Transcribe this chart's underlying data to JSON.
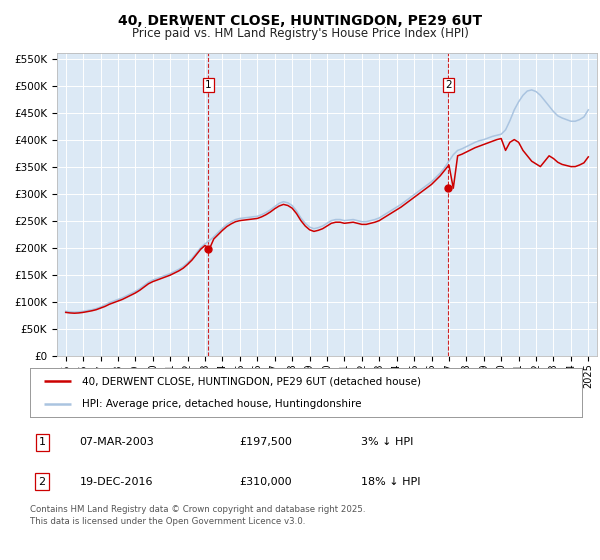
{
  "title": "40, DERWENT CLOSE, HUNTINGDON, PE29 6UT",
  "subtitle": "Price paid vs. HM Land Registry's House Price Index (HPI)",
  "title_fontsize": 10,
  "subtitle_fontsize": 8.5,
  "background_color": "#ffffff",
  "plot_bg_color": "#dce9f5",
  "grid_color": "#ffffff",
  "hpi_color": "#aac4e0",
  "price_color": "#cc0000",
  "marker_color": "#cc0000",
  "vline_color": "#cc0000",
  "ylim": [
    0,
    560000
  ],
  "yticks": [
    0,
    50000,
    100000,
    150000,
    200000,
    250000,
    300000,
    350000,
    400000,
    450000,
    500000,
    550000
  ],
  "ytick_labels": [
    "£0",
    "£50K",
    "£100K",
    "£150K",
    "£200K",
    "£250K",
    "£300K",
    "£350K",
    "£400K",
    "£450K",
    "£500K",
    "£550K"
  ],
  "xlim_start": 1994.5,
  "xlim_end": 2025.5,
  "xticks": [
    1995,
    1996,
    1997,
    1998,
    1999,
    2000,
    2001,
    2002,
    2003,
    2004,
    2005,
    2006,
    2007,
    2008,
    2009,
    2010,
    2011,
    2012,
    2013,
    2014,
    2015,
    2016,
    2017,
    2018,
    2019,
    2020,
    2021,
    2022,
    2023,
    2024,
    2025
  ],
  "sale1_x": 2003.18,
  "sale1_y": 197500,
  "sale1_label": "1",
  "sale2_x": 2016.96,
  "sale2_y": 310000,
  "sale2_label": "2",
  "legend_line1": "40, DERWENT CLOSE, HUNTINGDON, PE29 6UT (detached house)",
  "legend_line2": "HPI: Average price, detached house, Huntingdonshire",
  "table_row1": [
    "1",
    "07-MAR-2003",
    "£197,500",
    "3% ↓ HPI"
  ],
  "table_row2": [
    "2",
    "19-DEC-2016",
    "£310,000",
    "18% ↓ HPI"
  ],
  "footnote": "Contains HM Land Registry data © Crown copyright and database right 2025.\nThis data is licensed under the Open Government Licence v3.0.",
  "hpi_data_x": [
    1995.0,
    1995.25,
    1995.5,
    1995.75,
    1996.0,
    1996.25,
    1996.5,
    1996.75,
    1997.0,
    1997.25,
    1997.5,
    1997.75,
    1998.0,
    1998.25,
    1998.5,
    1998.75,
    1999.0,
    1999.25,
    1999.5,
    1999.75,
    2000.0,
    2000.25,
    2000.5,
    2000.75,
    2001.0,
    2001.25,
    2001.5,
    2001.75,
    2002.0,
    2002.25,
    2002.5,
    2002.75,
    2003.0,
    2003.25,
    2003.5,
    2003.75,
    2004.0,
    2004.25,
    2004.5,
    2004.75,
    2005.0,
    2005.25,
    2005.5,
    2005.75,
    2006.0,
    2006.25,
    2006.5,
    2006.75,
    2007.0,
    2007.25,
    2007.5,
    2007.75,
    2008.0,
    2008.25,
    2008.5,
    2008.75,
    2009.0,
    2009.25,
    2009.5,
    2009.75,
    2010.0,
    2010.25,
    2010.5,
    2010.75,
    2011.0,
    2011.25,
    2011.5,
    2011.75,
    2012.0,
    2012.25,
    2012.5,
    2012.75,
    2013.0,
    2013.25,
    2013.5,
    2013.75,
    2014.0,
    2014.25,
    2014.5,
    2014.75,
    2015.0,
    2015.25,
    2015.5,
    2015.75,
    2016.0,
    2016.25,
    2016.5,
    2016.75,
    2017.0,
    2017.25,
    2017.5,
    2017.75,
    2018.0,
    2018.25,
    2018.5,
    2018.75,
    2019.0,
    2019.25,
    2019.5,
    2019.75,
    2020.0,
    2020.25,
    2020.5,
    2020.75,
    2021.0,
    2021.25,
    2021.5,
    2021.75,
    2022.0,
    2022.25,
    2022.5,
    2022.75,
    2023.0,
    2023.25,
    2023.5,
    2023.75,
    2024.0,
    2024.25,
    2024.5,
    2024.75,
    2025.0
  ],
  "hpi_data_y": [
    82000,
    81000,
    80500,
    81000,
    82000,
    83500,
    85000,
    87000,
    90000,
    94000,
    98000,
    101000,
    104000,
    107000,
    111000,
    115000,
    119000,
    124000,
    130000,
    136000,
    140000,
    143000,
    146000,
    149000,
    152000,
    156000,
    160000,
    165000,
    172000,
    180000,
    190000,
    200000,
    207000,
    213000,
    220000,
    228000,
    236000,
    243000,
    248000,
    252000,
    254000,
    255000,
    256000,
    257000,
    258000,
    261000,
    265000,
    270000,
    276000,
    282000,
    285000,
    283000,
    278000,
    268000,
    255000,
    245000,
    238000,
    235000,
    237000,
    240000,
    245000,
    250000,
    252000,
    252000,
    250000,
    251000,
    252000,
    250000,
    248000,
    248000,
    250000,
    252000,
    255000,
    260000,
    265000,
    270000,
    275000,
    280000,
    286000,
    292000,
    298000,
    304000,
    310000,
    316000,
    322000,
    330000,
    338000,
    348000,
    360000,
    372000,
    380000,
    383000,
    387000,
    391000,
    395000,
    398000,
    400000,
    403000,
    406000,
    408000,
    410000,
    418000,
    435000,
    455000,
    470000,
    482000,
    490000,
    492000,
    489000,
    482000,
    472000,
    462000,
    452000,
    444000,
    440000,
    437000,
    434000,
    434000,
    437000,
    442000,
    455000
  ],
  "price_data_x": [
    1995.0,
    1995.25,
    1995.5,
    1995.75,
    1996.0,
    1996.25,
    1996.5,
    1996.75,
    1997.0,
    1997.25,
    1997.5,
    1997.75,
    1998.0,
    1998.25,
    1998.5,
    1998.75,
    1999.0,
    1999.25,
    1999.5,
    1999.75,
    2000.0,
    2000.25,
    2000.5,
    2000.75,
    2001.0,
    2001.25,
    2001.5,
    2001.75,
    2002.0,
    2002.25,
    2002.5,
    2002.75,
    2003.0,
    2003.25,
    2003.5,
    2003.75,
    2004.0,
    2004.25,
    2004.5,
    2004.75,
    2005.0,
    2005.25,
    2005.5,
    2005.75,
    2006.0,
    2006.25,
    2006.5,
    2006.75,
    2007.0,
    2007.25,
    2007.5,
    2007.75,
    2008.0,
    2008.25,
    2008.5,
    2008.75,
    2009.0,
    2009.25,
    2009.5,
    2009.75,
    2010.0,
    2010.25,
    2010.5,
    2010.75,
    2011.0,
    2011.25,
    2011.5,
    2011.75,
    2012.0,
    2012.25,
    2012.5,
    2012.75,
    2013.0,
    2013.25,
    2013.5,
    2013.75,
    2014.0,
    2014.25,
    2014.5,
    2014.75,
    2015.0,
    2015.25,
    2015.5,
    2015.75,
    2016.0,
    2016.25,
    2016.5,
    2016.75,
    2017.0,
    2017.25,
    2017.5,
    2017.75,
    2018.0,
    2018.25,
    2018.5,
    2018.75,
    2019.0,
    2019.25,
    2019.5,
    2019.75,
    2020.0,
    2020.25,
    2020.5,
    2020.75,
    2021.0,
    2021.25,
    2021.5,
    2021.75,
    2022.0,
    2022.25,
    2022.5,
    2022.75,
    2023.0,
    2023.25,
    2023.5,
    2023.75,
    2024.0,
    2024.25,
    2024.5,
    2024.75,
    2025.0
  ],
  "price_data_y": [
    80000,
    79000,
    78500,
    79000,
    80000,
    81500,
    83000,
    85000,
    88000,
    91000,
    95000,
    98000,
    101000,
    104000,
    108000,
    112000,
    116000,
    121000,
    127000,
    133000,
    137000,
    140000,
    143000,
    146000,
    149000,
    153000,
    157000,
    162000,
    169000,
    177000,
    187000,
    197000,
    204000,
    197500,
    216000,
    224000,
    232000,
    239000,
    244000,
    248000,
    250000,
    251000,
    252000,
    253000,
    254000,
    257000,
    261000,
    266000,
    272000,
    277000,
    280000,
    278000,
    273000,
    263000,
    250000,
    240000,
    233000,
    230000,
    232000,
    235000,
    240000,
    245000,
    247000,
    247000,
    245000,
    246000,
    247000,
    245000,
    243000,
    243000,
    245000,
    247000,
    250000,
    255000,
    260000,
    265000,
    270000,
    275000,
    281000,
    287000,
    293000,
    299000,
    305000,
    311000,
    317000,
    325000,
    333000,
    343000,
    353000,
    310000,
    370000,
    373000,
    377000,
    381000,
    385000,
    388000,
    391000,
    394000,
    397000,
    400000,
    402000,
    380000,
    395000,
    400000,
    395000,
    380000,
    370000,
    360000,
    355000,
    350000,
    360000,
    370000,
    365000,
    358000,
    354000,
    352000,
    350000,
    350000,
    353000,
    357000,
    368000
  ]
}
